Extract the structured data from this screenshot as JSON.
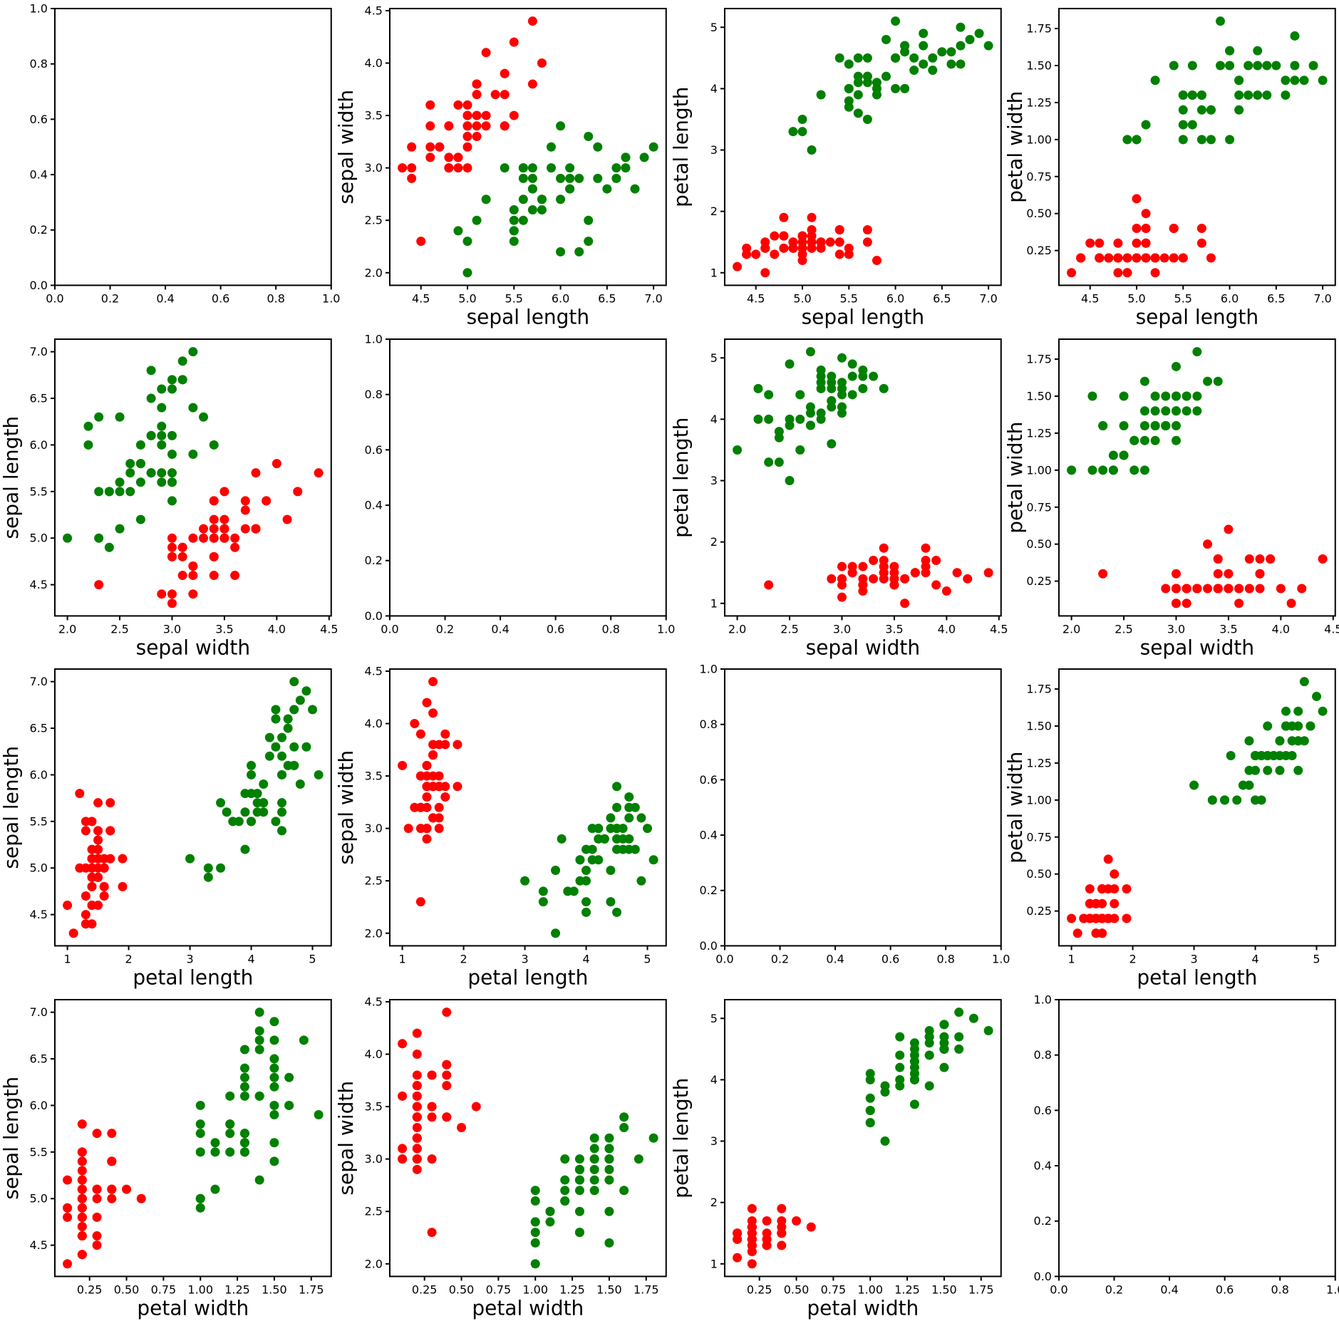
{
  "figure": {
    "background": "#ffffff",
    "description": "4x4 scatter-plot matrix (pair plot); panel at row i, column j plots x = features[i] versus y = features[j]; diagonal panels (i = j) are empty axes with 0.0-1.0 limits"
  },
  "chart_data": {
    "type": "scatter",
    "title": "",
    "legend": false,
    "grid": false,
    "features": [
      "sepal length",
      "sepal width",
      "petal length",
      "petal width"
    ],
    "marker": {
      "shape": "circle",
      "radius_px": 6.5
    },
    "axes": {
      "sepal length": {
        "lim": [
          4.165,
          7.135
        ],
        "ticks": [
          4.5,
          5.0,
          5.5,
          6.0,
          6.5,
          7.0
        ],
        "decimals": 1
      },
      "sepal width": {
        "lim": [
          1.88,
          4.52
        ],
        "ticks": [
          2.0,
          2.5,
          3.0,
          3.5,
          4.0,
          4.5
        ],
        "decimals": 1
      },
      "petal length": {
        "lim": [
          0.795,
          5.305
        ],
        "ticks": [
          1,
          2,
          3,
          4,
          5
        ],
        "decimals": 0
      },
      "petal width": {
        "lim": [
          0.015,
          1.885
        ],
        "ticks": [
          0.25,
          0.5,
          0.75,
          1.0,
          1.25,
          1.5,
          1.75
        ],
        "decimals": 2
      },
      "empty": {
        "lim": [
          0.0,
          1.0
        ],
        "ticks": [
          0.0,
          0.2,
          0.4,
          0.6,
          0.8,
          1.0
        ],
        "decimals": 1
      }
    },
    "series": [
      {
        "name": "class-red",
        "color": "#ff0000",
        "points": [
          [
            5.1,
            3.5,
            1.4,
            0.2
          ],
          [
            4.9,
            3.0,
            1.4,
            0.2
          ],
          [
            4.7,
            3.2,
            1.3,
            0.2
          ],
          [
            4.6,
            3.1,
            1.5,
            0.2
          ],
          [
            5.0,
            3.6,
            1.4,
            0.2
          ],
          [
            5.4,
            3.9,
            1.7,
            0.4
          ],
          [
            4.6,
            3.4,
            1.4,
            0.3
          ],
          [
            5.0,
            3.4,
            1.5,
            0.2
          ],
          [
            4.4,
            2.9,
            1.4,
            0.2
          ],
          [
            4.9,
            3.1,
            1.5,
            0.1
          ],
          [
            5.4,
            3.7,
            1.5,
            0.2
          ],
          [
            4.8,
            3.4,
            1.6,
            0.2
          ],
          [
            4.8,
            3.0,
            1.4,
            0.1
          ],
          [
            4.3,
            3.0,
            1.1,
            0.1
          ],
          [
            5.8,
            4.0,
            1.2,
            0.2
          ],
          [
            5.7,
            4.4,
            1.5,
            0.4
          ],
          [
            5.4,
            3.9,
            1.3,
            0.4
          ],
          [
            5.1,
            3.5,
            1.4,
            0.3
          ],
          [
            5.7,
            3.8,
            1.7,
            0.3
          ],
          [
            5.1,
            3.8,
            1.5,
            0.3
          ],
          [
            5.4,
            3.4,
            1.7,
            0.2
          ],
          [
            5.1,
            3.7,
            1.5,
            0.4
          ],
          [
            4.6,
            3.6,
            1.0,
            0.2
          ],
          [
            5.1,
            3.3,
            1.7,
            0.5
          ],
          [
            4.8,
            3.4,
            1.9,
            0.2
          ],
          [
            5.0,
            3.0,
            1.6,
            0.2
          ],
          [
            5.0,
            3.4,
            1.6,
            0.4
          ],
          [
            5.2,
            3.5,
            1.5,
            0.2
          ],
          [
            5.2,
            3.4,
            1.4,
            0.2
          ],
          [
            4.7,
            3.2,
            1.6,
            0.2
          ],
          [
            4.8,
            3.1,
            1.6,
            0.2
          ],
          [
            5.4,
            3.4,
            1.5,
            0.4
          ],
          [
            5.2,
            4.1,
            1.5,
            0.1
          ],
          [
            5.5,
            4.2,
            1.4,
            0.2
          ],
          [
            4.9,
            3.1,
            1.5,
            0.2
          ],
          [
            5.0,
            3.2,
            1.2,
            0.2
          ],
          [
            5.5,
            3.5,
            1.3,
            0.2
          ],
          [
            4.9,
            3.6,
            1.4,
            0.1
          ],
          [
            4.4,
            3.0,
            1.3,
            0.2
          ],
          [
            5.1,
            3.4,
            1.5,
            0.2
          ],
          [
            5.0,
            3.5,
            1.3,
            0.3
          ],
          [
            4.5,
            2.3,
            1.3,
            0.3
          ],
          [
            4.4,
            3.2,
            1.3,
            0.2
          ],
          [
            5.0,
            3.5,
            1.6,
            0.6
          ],
          [
            5.1,
            3.8,
            1.9,
            0.4
          ],
          [
            4.8,
            3.0,
            1.4,
            0.3
          ],
          [
            5.1,
            3.8,
            1.6,
            0.2
          ],
          [
            4.6,
            3.2,
            1.4,
            0.2
          ],
          [
            5.3,
            3.7,
            1.5,
            0.2
          ],
          [
            5.0,
            3.3,
            1.4,
            0.2
          ]
        ]
      },
      {
        "name": "class-green",
        "color": "#008000",
        "points": [
          [
            7.0,
            3.2,
            4.7,
            1.4
          ],
          [
            6.4,
            3.2,
            4.5,
            1.5
          ],
          [
            6.9,
            3.1,
            4.9,
            1.5
          ],
          [
            5.5,
            2.3,
            4.0,
            1.3
          ],
          [
            6.5,
            2.8,
            4.6,
            1.5
          ],
          [
            5.7,
            2.8,
            4.5,
            1.3
          ],
          [
            6.3,
            3.3,
            4.7,
            1.6
          ],
          [
            4.9,
            2.4,
            3.3,
            1.0
          ],
          [
            6.6,
            2.9,
            4.6,
            1.3
          ],
          [
            5.2,
            2.7,
            3.9,
            1.4
          ],
          [
            5.0,
            2.0,
            3.5,
            1.0
          ],
          [
            5.9,
            3.0,
            4.2,
            1.5
          ],
          [
            6.0,
            2.2,
            4.0,
            1.0
          ],
          [
            6.1,
            2.9,
            4.7,
            1.4
          ],
          [
            5.6,
            2.9,
            3.6,
            1.3
          ],
          [
            6.7,
            3.1,
            4.4,
            1.4
          ],
          [
            5.6,
            3.0,
            4.5,
            1.5
          ],
          [
            5.8,
            2.7,
            4.1,
            1.0
          ],
          [
            6.2,
            2.2,
            4.5,
            1.5
          ],
          [
            5.6,
            2.5,
            3.9,
            1.1
          ],
          [
            5.9,
            3.2,
            4.8,
            1.8
          ],
          [
            6.1,
            2.8,
            4.0,
            1.3
          ],
          [
            6.3,
            2.5,
            4.9,
            1.5
          ],
          [
            6.1,
            2.8,
            4.7,
            1.2
          ],
          [
            6.4,
            2.9,
            4.3,
            1.3
          ],
          [
            6.6,
            3.0,
            4.4,
            1.4
          ],
          [
            6.8,
            2.8,
            4.8,
            1.4
          ],
          [
            6.7,
            3.0,
            5.0,
            1.7
          ],
          [
            6.0,
            2.9,
            4.5,
            1.5
          ],
          [
            5.7,
            2.6,
            3.5,
            1.0
          ],
          [
            5.5,
            2.4,
            3.8,
            1.1
          ],
          [
            5.5,
            2.4,
            3.7,
            1.0
          ],
          [
            5.8,
            2.7,
            3.9,
            1.2
          ],
          [
            6.0,
            2.7,
            5.1,
            1.6
          ],
          [
            5.4,
            3.0,
            4.5,
            1.5
          ],
          [
            6.0,
            3.4,
            4.5,
            1.6
          ],
          [
            6.7,
            3.1,
            4.7,
            1.5
          ],
          [
            6.3,
            2.3,
            4.4,
            1.3
          ],
          [
            5.6,
            3.0,
            4.1,
            1.3
          ],
          [
            5.5,
            2.5,
            4.0,
            1.3
          ],
          [
            5.5,
            2.6,
            4.4,
            1.2
          ],
          [
            6.1,
            3.0,
            4.6,
            1.4
          ],
          [
            5.8,
            2.6,
            4.0,
            1.2
          ],
          [
            5.0,
            2.3,
            3.3,
            1.0
          ],
          [
            5.6,
            2.7,
            4.2,
            1.3
          ],
          [
            5.7,
            3.0,
            4.2,
            1.2
          ],
          [
            5.7,
            2.9,
            4.2,
            1.3
          ],
          [
            6.2,
            2.9,
            4.3,
            1.3
          ],
          [
            5.1,
            2.5,
            3.0,
            1.1
          ],
          [
            5.7,
            2.8,
            4.1,
            1.3
          ]
        ]
      }
    ]
  }
}
